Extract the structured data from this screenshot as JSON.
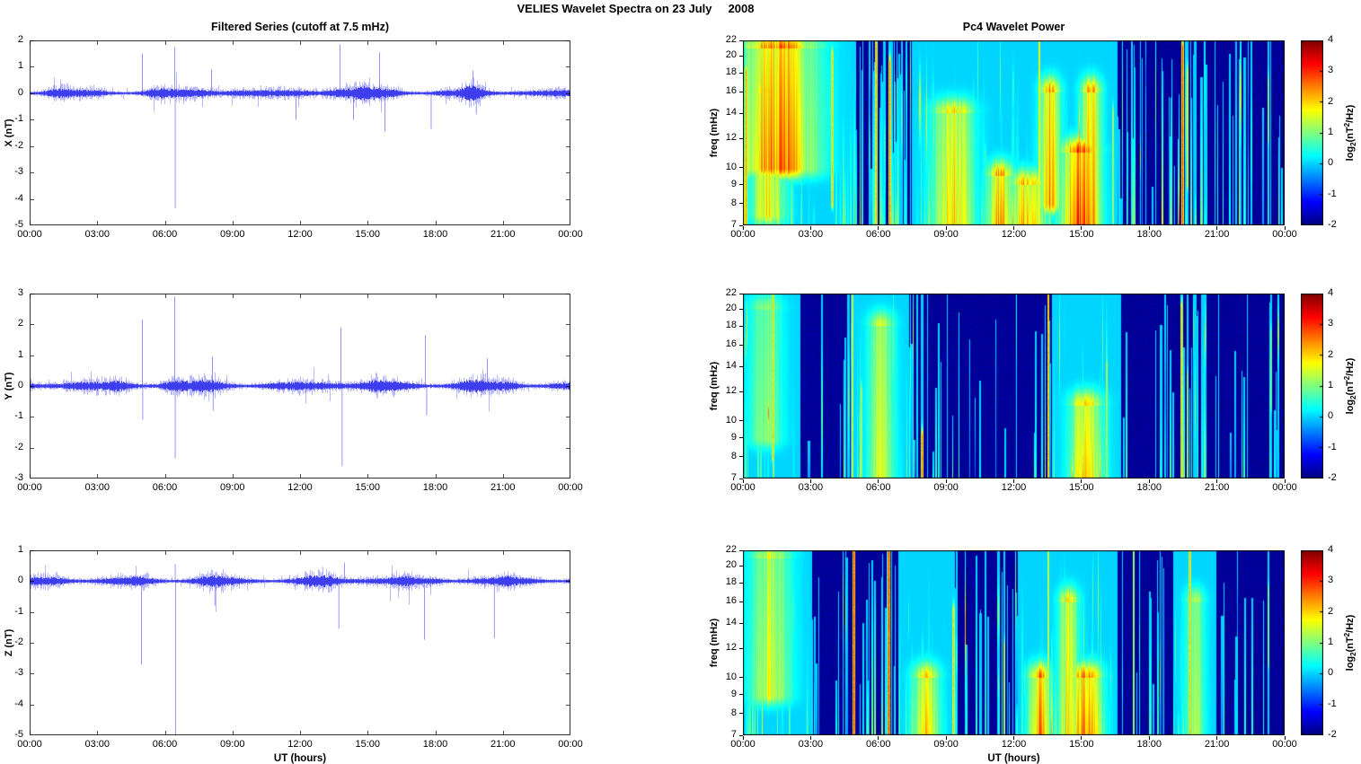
{
  "figure_title": "VELIES Wavelet Spectra on 23 July     2008",
  "x_axis": {
    "label": "UT (hours)",
    "tick_hours": [
      0,
      3,
      6,
      9,
      12,
      15,
      18,
      21,
      24
    ],
    "tick_labels": [
      "00:00",
      "03:00",
      "06:00",
      "09:00",
      "12:00",
      "15:00",
      "18:00",
      "21:00",
      "00:00"
    ]
  },
  "colorbar": {
    "tick_values": [
      4,
      3,
      2,
      1,
      0,
      -1,
      -2
    ],
    "tick_labels": [
      "4",
      "3",
      "2",
      "1",
      "0",
      "-1",
      "-2"
    ],
    "range": [
      -2,
      4
    ],
    "colormap": "jet",
    "label_parts": {
      "prefix": "log",
      "sub": "2",
      "mid": "(nT",
      "sup": "2",
      "suffix": "/Hz)"
    }
  },
  "colors": {
    "series_line": "#0000ff",
    "axis": "#000000",
    "background": "#ffffff"
  },
  "chart_data": [
    {
      "type": "line",
      "name": "filtered-series-x",
      "title": "Filtered Series (cutoff at 7.5 mHz)",
      "ylabel": "X (nT)",
      "xlabel": "",
      "ylim": [
        -5,
        2
      ],
      "yticks": [
        2,
        1,
        0,
        -1,
        -2,
        -3,
        -4,
        -5
      ],
      "x_range_hours": [
        0,
        24
      ],
      "noise": {
        "seed": 11,
        "base_amplitude": 0.14,
        "bursts": [
          {
            "t": 1.1,
            "w": 0.5,
            "a": 0.12
          },
          {
            "t": 3.0,
            "w": 0.3,
            "a": 0.05
          },
          {
            "t": 5.6,
            "w": 0.5,
            "a": 0.1
          },
          {
            "t": 7.9,
            "w": 0.6,
            "a": 0.12
          },
          {
            "t": 9.0,
            "w": 0.5,
            "a": 0.1
          },
          {
            "t": 12.2,
            "w": 0.4,
            "a": 0.1
          },
          {
            "t": 13.4,
            "w": 0.7,
            "a": 0.16
          },
          {
            "t": 15.0,
            "w": 0.5,
            "a": 0.14
          },
          {
            "t": 16.2,
            "w": 0.4,
            "a": 0.12
          },
          {
            "t": 19.7,
            "w": 0.35,
            "a": 0.22
          },
          {
            "t": 21.5,
            "w": 0.4,
            "a": 0.06
          }
        ]
      },
      "spikes": [
        {
          "t": 4.98,
          "v": 1.5
        },
        {
          "t": 6.42,
          "v": 1.75
        },
        {
          "t": 6.44,
          "v": -4.35
        },
        {
          "t": 8.05,
          "v": 0.9
        },
        {
          "t": 11.8,
          "v": -1.0
        },
        {
          "t": 13.75,
          "v": 1.85
        },
        {
          "t": 14.35,
          "v": -1.0
        },
        {
          "t": 15.5,
          "v": 1.55
        },
        {
          "t": 15.75,
          "v": -1.45
        },
        {
          "t": 17.8,
          "v": -1.35
        },
        {
          "t": 19.65,
          "v": 0.85
        },
        {
          "t": 19.8,
          "v": -0.8
        }
      ]
    },
    {
      "type": "line",
      "name": "filtered-series-y",
      "title": "",
      "ylabel": "Y (nT)",
      "xlabel": "",
      "ylim": [
        -3,
        3
      ],
      "yticks": [
        3,
        2,
        1,
        0,
        -1,
        -2,
        -3
      ],
      "x_range_hours": [
        0,
        24
      ],
      "noise": {
        "seed": 22,
        "base_amplitude": 0.15,
        "bursts": [
          {
            "t": 1.5,
            "w": 0.6,
            "a": 0.1
          },
          {
            "t": 4.0,
            "w": 0.4,
            "a": 0.08
          },
          {
            "t": 6.3,
            "w": 0.5,
            "a": 0.12
          },
          {
            "t": 8.1,
            "w": 0.5,
            "a": 0.1
          },
          {
            "t": 13.6,
            "w": 0.6,
            "a": 0.12
          },
          {
            "t": 15.3,
            "w": 0.5,
            "a": 0.1
          },
          {
            "t": 19.5,
            "w": 0.5,
            "a": 0.12
          },
          {
            "t": 21.3,
            "w": 0.4,
            "a": 0.07
          }
        ]
      },
      "spikes": [
        {
          "t": 4.98,
          "v": 2.15
        },
        {
          "t": 5.0,
          "v": -1.1
        },
        {
          "t": 6.42,
          "v": 2.9
        },
        {
          "t": 6.44,
          "v": -2.35
        },
        {
          "t": 8.1,
          "v": 0.95
        },
        {
          "t": 8.12,
          "v": -0.8
        },
        {
          "t": 13.8,
          "v": 1.9
        },
        {
          "t": 13.85,
          "v": -2.6
        },
        {
          "t": 17.55,
          "v": 1.65
        },
        {
          "t": 17.6,
          "v": -0.95
        },
        {
          "t": 20.3,
          "v": 0.9
        }
      ]
    },
    {
      "type": "line",
      "name": "filtered-series-z",
      "title": "",
      "ylabel": "Z (nT)",
      "xlabel": "UT (hours)",
      "ylim": [
        -5,
        1
      ],
      "yticks": [
        1,
        0,
        -1,
        -2,
        -3,
        -4,
        -5
      ],
      "x_range_hours": [
        0,
        24
      ],
      "noise": {
        "seed": 33,
        "base_amplitude": 0.13,
        "bursts": [
          {
            "t": 1.4,
            "w": 0.6,
            "a": 0.1
          },
          {
            "t": 5.0,
            "w": 0.4,
            "a": 0.07
          },
          {
            "t": 8.0,
            "w": 0.6,
            "a": 0.09
          },
          {
            "t": 12.9,
            "w": 0.6,
            "a": 0.1
          },
          {
            "t": 15.1,
            "w": 0.5,
            "a": 0.12
          },
          {
            "t": 16.4,
            "w": 0.4,
            "a": 0.08
          },
          {
            "t": 19.6,
            "w": 0.4,
            "a": 0.1
          },
          {
            "t": 21.0,
            "w": 0.4,
            "a": 0.06
          }
        ]
      },
      "spikes": [
        {
          "t": 4.95,
          "v": -2.7
        },
        {
          "t": 6.45,
          "v": -5.0
        },
        {
          "t": 6.44,
          "v": 0.55
        },
        {
          "t": 8.2,
          "v": -0.8
        },
        {
          "t": 13.7,
          "v": -1.55
        },
        {
          "t": 13.95,
          "v": 0.6
        },
        {
          "t": 17.5,
          "v": -1.9
        },
        {
          "t": 20.6,
          "v": -1.85
        }
      ]
    },
    {
      "type": "heatmap",
      "name": "pc4-wavelet-power-x",
      "title": "Pc4 Wavelet Power",
      "ylabel": "freq (mHz)",
      "xlabel": "",
      "f_range_mhz": [
        7,
        22
      ],
      "y_scale": "log",
      "yticks": [
        22,
        20,
        18,
        16,
        14,
        12,
        10,
        9,
        8,
        7
      ],
      "clim": [
        -2,
        4
      ],
      "colormap": "jet",
      "background_power": -1.85,
      "streaks": {
        "seed": 101,
        "count": 300,
        "max_power": 3.3,
        "density_profile": [
          [
            0,
            2.2,
            1.6
          ],
          [
            2.2,
            5.5,
            0.9
          ],
          [
            5.5,
            10,
            1.2
          ],
          [
            10,
            16,
            1.3
          ],
          [
            16,
            18.5,
            0.55
          ],
          [
            18.5,
            20,
            0.9
          ],
          [
            20,
            24,
            0.45
          ]
        ]
      },
      "features": [
        {
          "kind": "blob",
          "t": 1.6,
          "width_hours": 1.1,
          "f_low": 10,
          "f_high": 21,
          "power": 3.3
        },
        {
          "kind": "blob",
          "t": 1.1,
          "width_hours": 0.5,
          "f_low": 7.5,
          "f_high": 16,
          "power": 2.4
        },
        {
          "kind": "line",
          "t": 0.15,
          "width_hours": 0.12,
          "f_low": 7,
          "f_high": 18,
          "power": 2.6
        },
        {
          "kind": "line",
          "t": 3.95,
          "width_hours": 0.1,
          "f_low": 8,
          "f_high": 20,
          "power": 2.2
        },
        {
          "kind": "line",
          "t": 5.9,
          "width_hours": 0.1,
          "f_low": 7,
          "f_high": 22,
          "power": 2.4
        },
        {
          "kind": "line",
          "t": 6.5,
          "width_hours": 0.1,
          "f_low": 7,
          "f_high": 19,
          "power": 2.8
        },
        {
          "kind": "blob",
          "t": 9.3,
          "width_hours": 0.6,
          "f_low": 7,
          "f_high": 14,
          "power": 2.5
        },
        {
          "kind": "blob",
          "t": 11.4,
          "width_hours": 0.4,
          "f_low": 7,
          "f_high": 9.5,
          "power": 2.9
        },
        {
          "kind": "blob",
          "t": 12.6,
          "width_hours": 0.5,
          "f_low": 7,
          "f_high": 9,
          "power": 3.0
        },
        {
          "kind": "line",
          "t": 13.15,
          "width_hours": 0.08,
          "f_low": 7,
          "f_high": 22,
          "power": 2.9
        },
        {
          "kind": "blob",
          "t": 13.6,
          "width_hours": 0.3,
          "f_low": 8,
          "f_high": 16,
          "power": 3.1
        },
        {
          "kind": "blob",
          "t": 14.9,
          "width_hours": 0.55,
          "f_low": 7,
          "f_high": 11,
          "power": 3.6
        },
        {
          "kind": "blob",
          "t": 15.4,
          "width_hours": 0.3,
          "f_low": 7,
          "f_high": 16,
          "power": 3.0
        },
        {
          "kind": "line",
          "t": 16.4,
          "width_hours": 0.08,
          "f_low": 7,
          "f_high": 14,
          "power": 2.0
        },
        {
          "kind": "line",
          "t": 19.5,
          "width_hours": 0.12,
          "f_low": 7,
          "f_high": 21,
          "power": 3.2
        },
        {
          "kind": "line",
          "t": 19.7,
          "width_hours": 0.08,
          "f_low": 9,
          "f_high": 18,
          "power": 2.6
        },
        {
          "kind": "line",
          "t": 23.3,
          "width_hours": 0.08,
          "f_low": 12,
          "f_high": 17,
          "power": 1.6
        }
      ]
    },
    {
      "type": "heatmap",
      "name": "pc4-wavelet-power-y",
      "title": "",
      "ylabel": "freq (mHz)",
      "xlabel": "",
      "f_range_mhz": [
        7,
        22
      ],
      "y_scale": "log",
      "yticks": [
        22,
        20,
        18,
        16,
        14,
        12,
        10,
        9,
        8,
        7
      ],
      "clim": [
        -2,
        4
      ],
      "colormap": "jet",
      "background_power": -1.85,
      "streaks": {
        "seed": 202,
        "count": 160,
        "max_power": 2.6,
        "density_profile": [
          [
            0,
            2.6,
            1.3
          ],
          [
            2.6,
            4.6,
            0.35
          ],
          [
            4.6,
            8.2,
            0.9
          ],
          [
            8.2,
            13,
            0.35
          ],
          [
            13,
            16.3,
            0.8
          ],
          [
            16.3,
            18.8,
            0.35
          ],
          [
            18.8,
            20.6,
            0.8
          ],
          [
            20.6,
            24,
            0.3
          ]
        ]
      },
      "features": [
        {
          "kind": "line",
          "t": 1.35,
          "width_hours": 0.12,
          "f_low": 8,
          "f_high": 22,
          "power": 2.2
        },
        {
          "kind": "blob",
          "t": 1.0,
          "width_hours": 0.5,
          "f_low": 9,
          "f_high": 20,
          "power": 1.4
        },
        {
          "kind": "line",
          "t": 4.85,
          "width_hours": 0.08,
          "f_low": 7,
          "f_high": 22,
          "power": 2.3
        },
        {
          "kind": "line",
          "t": 5.25,
          "width_hours": 0.07,
          "f_low": 7,
          "f_high": 12,
          "power": 2.0
        },
        {
          "kind": "blob",
          "t": 6.1,
          "width_hours": 0.4,
          "f_low": 7,
          "f_high": 18,
          "power": 1.8
        },
        {
          "kind": "line",
          "t": 7.95,
          "width_hours": 0.1,
          "f_low": 7,
          "f_high": 9,
          "power": 2.8
        },
        {
          "kind": "line",
          "t": 13.55,
          "width_hours": 0.08,
          "f_low": 7,
          "f_high": 22,
          "power": 3.6
        },
        {
          "kind": "blob",
          "t": 15.2,
          "width_hours": 0.5,
          "f_low": 7,
          "f_high": 11,
          "power": 2.6
        },
        {
          "kind": "line",
          "t": 16.1,
          "width_hours": 0.07,
          "f_low": 7,
          "f_high": 14,
          "power": 2.2
        },
        {
          "kind": "line",
          "t": 19.45,
          "width_hours": 0.1,
          "f_low": 7,
          "f_high": 20,
          "power": 2.2
        },
        {
          "kind": "line",
          "t": 19.7,
          "width_hours": 0.08,
          "f_low": 7,
          "f_high": 13,
          "power": 1.8
        },
        {
          "kind": "line",
          "t": 23.4,
          "width_hours": 0.08,
          "f_low": 11,
          "f_high": 17,
          "power": 1.4
        }
      ]
    },
    {
      "type": "heatmap",
      "name": "pc4-wavelet-power-z",
      "title": "",
      "ylabel": "freq (mHz)",
      "xlabel": "UT (hours)",
      "f_range_mhz": [
        7,
        22
      ],
      "y_scale": "log",
      "yticks": [
        22,
        20,
        18,
        16,
        14,
        12,
        10,
        9,
        8,
        7
      ],
      "clim": [
        -2,
        4
      ],
      "colormap": "jet",
      "background_power": -1.85,
      "streaks": {
        "seed": 303,
        "count": 190,
        "max_power": 2.8,
        "density_profile": [
          [
            0,
            2.4,
            1.2
          ],
          [
            2.4,
            4.6,
            0.4
          ],
          [
            4.6,
            9.6,
            0.8
          ],
          [
            9.6,
            11.4,
            0.5
          ],
          [
            11.4,
            16,
            1.0
          ],
          [
            16,
            18,
            0.5
          ],
          [
            18,
            20.4,
            0.8
          ],
          [
            20.4,
            24,
            0.35
          ]
        ]
      },
      "features": [
        {
          "kind": "blob",
          "t": 1.2,
          "width_hours": 0.6,
          "f_low": 9,
          "f_high": 21,
          "power": 2.0
        },
        {
          "kind": "line",
          "t": 4.9,
          "width_hours": 0.1,
          "f_low": 7,
          "f_high": 22,
          "power": 3.4
        },
        {
          "kind": "line",
          "t": 6.45,
          "width_hours": 0.1,
          "f_low": 7,
          "f_high": 22,
          "power": 3.5
        },
        {
          "kind": "blob",
          "t": 8.1,
          "width_hours": 0.4,
          "f_low": 7,
          "f_high": 10,
          "power": 2.4
        },
        {
          "kind": "line",
          "t": 9.35,
          "width_hours": 0.1,
          "f_low": 7,
          "f_high": 15,
          "power": 2.2
        },
        {
          "kind": "line",
          "t": 11.6,
          "width_hours": 0.08,
          "f_low": 7,
          "f_high": 12,
          "power": 2.2
        },
        {
          "kind": "blob",
          "t": 13.1,
          "width_hours": 0.3,
          "f_low": 7,
          "f_high": 10,
          "power": 3.2
        },
        {
          "kind": "line",
          "t": 13.55,
          "width_hours": 0.08,
          "f_low": 7,
          "f_high": 22,
          "power": 2.4
        },
        {
          "kind": "blob",
          "t": 14.4,
          "width_hours": 0.3,
          "f_low": 7,
          "f_high": 16,
          "power": 2.4
        },
        {
          "kind": "blob",
          "t": 15.2,
          "width_hours": 0.45,
          "f_low": 7,
          "f_high": 10,
          "power": 3.5
        },
        {
          "kind": "line",
          "t": 17.3,
          "width_hours": 0.08,
          "f_low": 7,
          "f_high": 22,
          "power": 2.0
        },
        {
          "kind": "line",
          "t": 19.8,
          "width_hours": 0.1,
          "f_low": 7,
          "f_high": 22,
          "power": 2.3
        },
        {
          "kind": "blob",
          "t": 20.0,
          "width_hours": 0.3,
          "f_low": 7,
          "f_high": 16,
          "power": 1.6
        },
        {
          "kind": "line",
          "t": 23.3,
          "width_hours": 0.08,
          "f_low": 11,
          "f_high": 17,
          "power": 1.5
        }
      ]
    }
  ]
}
